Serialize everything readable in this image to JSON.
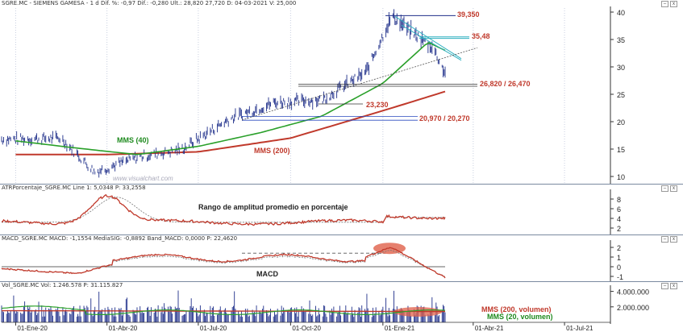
{
  "main": {
    "header": "SGRE.MC - SIEMENS GAMESA - 1 d  Dif. %: -0,97  Dif.: -0,280  Ult.: 28,820  27,720  D: 04-03-2021  V: 25,000",
    "watermark": "www.visualchart.com",
    "y_ticks": [
      "40",
      "35",
      "30",
      "25",
      "20",
      "15",
      "10"
    ],
    "labels": {
      "high": "39,350",
      "resist": "35,48",
      "support1": "26,820 / 26,470",
      "support2": "23,230",
      "support3": "20,970 / 20,270",
      "mms40": "MMS (40)",
      "mms200": "MMS (200)"
    }
  },
  "atr": {
    "header": "ATRPorcentaje_SGRE.MC  Line 1: 5,0348  P: 33,2558",
    "title": "Rango de amplitud promedio en porcentaje",
    "y_ticks": [
      "8",
      "6",
      "4",
      "2"
    ]
  },
  "macd": {
    "header": "MACD_SGRE.MC  MACD: -1,1554  MediaSIG: -0,8892  Band_MACD: 0,0000  P: 22,4620",
    "title": "MACD",
    "y_ticks": [
      "2",
      "1",
      "0",
      "-1"
    ]
  },
  "vol": {
    "header": "Vol_SGRE.MC  Vol: 1.246.578  P: 31.115.827",
    "y_ticks": [
      "4.000.000",
      "2.000.000"
    ],
    "labels": {
      "mms200v": "MMS (200, volumen)",
      "mms20v": "MMS (20, volumen)"
    }
  },
  "x_ticks": [
    "01-Ene-20",
    "01-Abr-20",
    "01-Jul-20",
    "01-Oct-20",
    "01-Ene-21",
    "01-Abr-21",
    "01-Jul-21"
  ],
  "colors": {
    "price": "#1f2f8a",
    "mms40": "#2aa02a",
    "mms200": "#c0392b",
    "atr": "#c0392b",
    "volume": "#1f2f8a"
  },
  "chart_data": {
    "type": "line",
    "x_axis": "date",
    "price_range": [
      9,
      41
    ],
    "levels": [
      39.35,
      35.48,
      26.82,
      26.47,
      23.23,
      20.97,
      20.27
    ],
    "series": [
      {
        "name": "MMS (40)",
        "x": [
          "2020-01-01",
          "2020-03-01",
          "2020-05-01",
          "2020-07-01",
          "2020-09-01",
          "2020-11-01",
          "2021-01-01",
          "2021-02-15",
          "2021-03-04"
        ],
        "values": [
          16.5,
          15.2,
          14.0,
          15.5,
          18.0,
          21.0,
          27.0,
          34.5,
          33.0
        ]
      },
      {
        "name": "MMS (200)",
        "x": [
          "2020-01-01",
          "2020-04-01",
          "2020-07-01",
          "2020-10-01",
          "2021-01-01",
          "2021-03-04"
        ],
        "values": [
          14.0,
          14.0,
          14.5,
          17.0,
          22.0,
          25.5
        ]
      }
    ],
    "price_approx": {
      "x": [
        "2020-01-01",
        "2020-02-15",
        "2020-03-20",
        "2020-05-01",
        "2020-06-15",
        "2020-08-01",
        "2020-09-15",
        "2020-11-01",
        "2020-12-15",
        "2021-01-10",
        "2021-02-01",
        "2021-02-20",
        "2021-03-04"
      ],
      "values": [
        16.8,
        17.0,
        10.8,
        13.5,
        15.0,
        20.5,
        23.5,
        24.0,
        29.0,
        39.3,
        36.0,
        33.5,
        28.8
      ]
    }
  }
}
